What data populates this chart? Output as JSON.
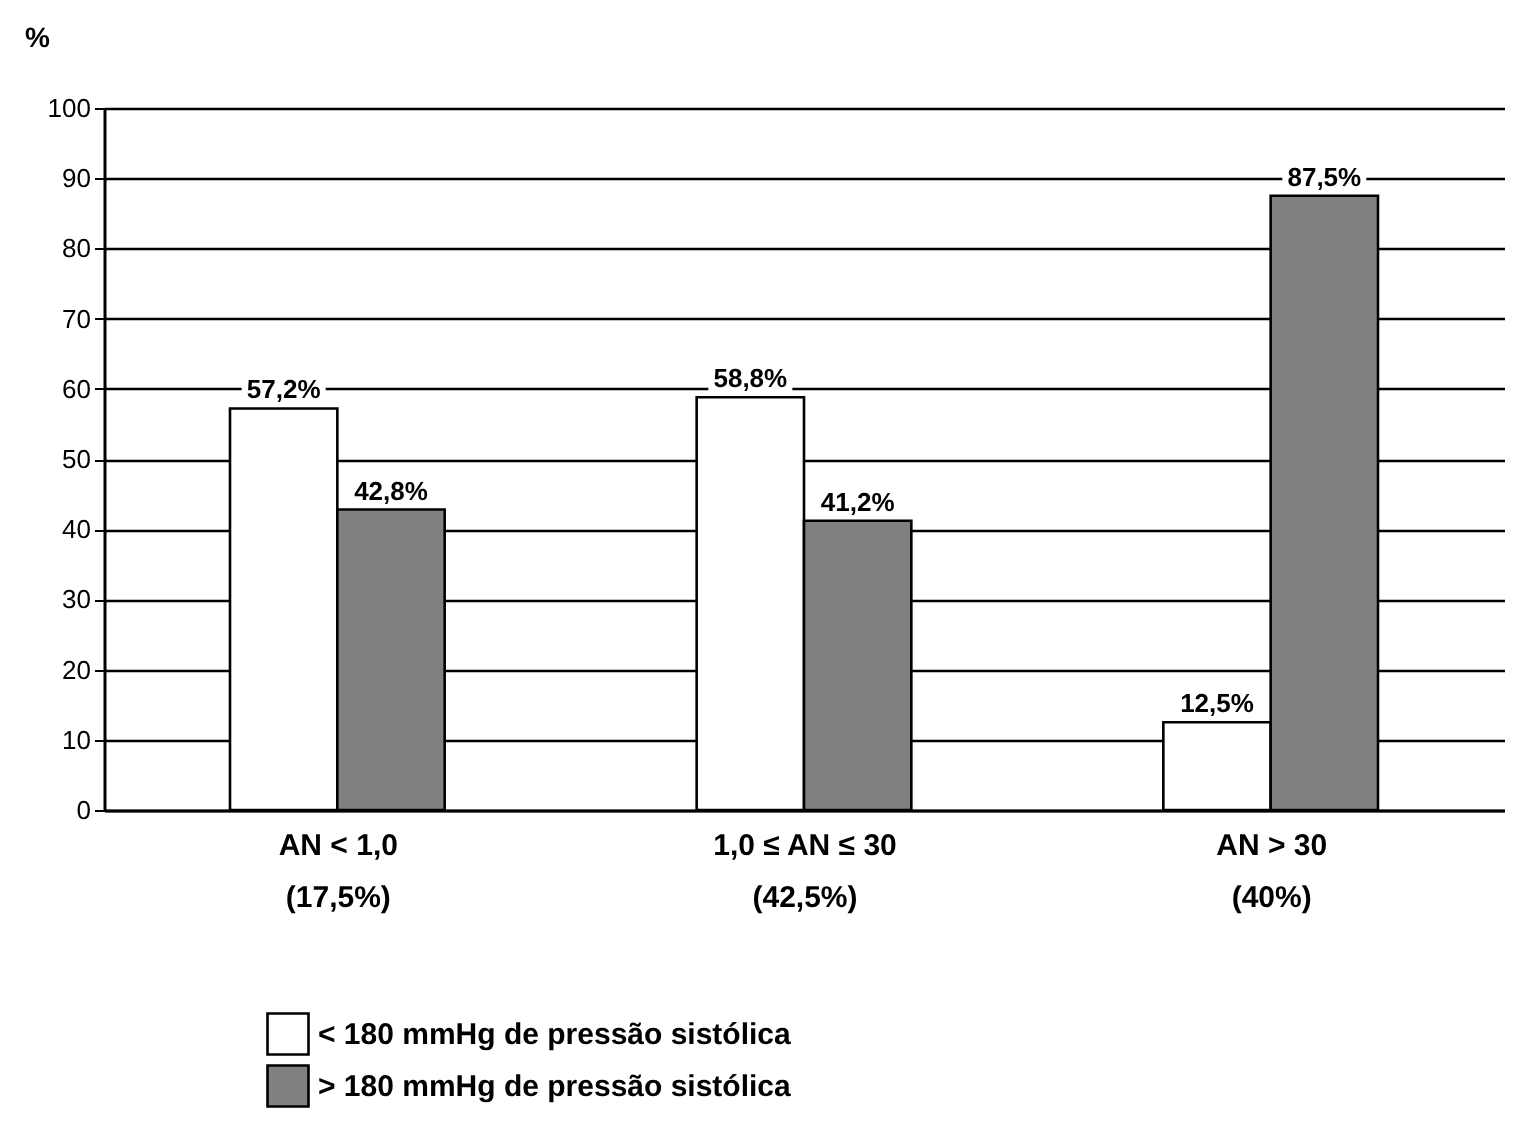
{
  "chart_data": {
    "type": "bar",
    "ylabel": "%",
    "categories": [
      "AN < 1,0\n(17,5%)",
      "1,0 ≤ AN ≤ 30\n(42,5%)",
      "AN > 30\n(40%)"
    ],
    "series": [
      {
        "name": "< 180 mmHg de pressão sistólica",
        "color": "#ffffff",
        "values": [
          57.2,
          58.8,
          12.5
        ],
        "value_labels": [
          "57,2%",
          "58,8%",
          "12,5%"
        ]
      },
      {
        "name": "> 180 mmHg de pressão sistólica",
        "color": "#808080",
        "values": [
          42.8,
          41.2,
          87.5
        ],
        "value_labels": [
          "42,8%",
          "41,2%",
          "87,5%"
        ]
      }
    ],
    "ylim": [
      0,
      100
    ],
    "yticks": [
      0,
      10,
      20,
      30,
      40,
      50,
      60,
      70,
      80,
      90,
      100
    ],
    "grid": "y",
    "legend": "bottom"
  }
}
